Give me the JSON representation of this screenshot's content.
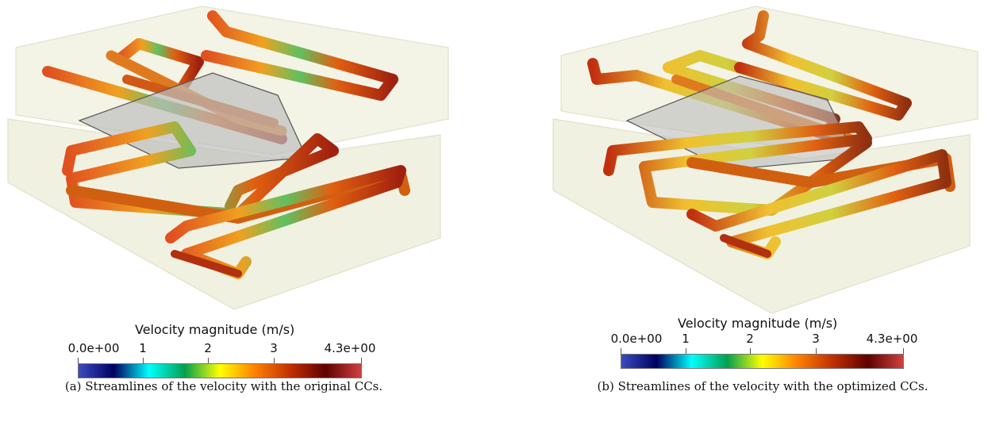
{
  "figure": {
    "panels": [
      {
        "id": "a",
        "caption": "(a) Streamlines of the velocity with the original CCs.",
        "colorbar": {
          "title": "Velocity magnitude (m/s)",
          "min_label": "0.0e+00",
          "max_label": "4.3e+00",
          "ticks": [
            "1",
            "2",
            "3"
          ],
          "tick_values": [
            1,
            2,
            3
          ],
          "range": [
            0,
            4.3
          ]
        }
      },
      {
        "id": "b",
        "caption": "(b) Streamlines of the velocity with the optimized CCs.",
        "colorbar": {
          "title": "Velocity magnitude (m/s)",
          "min_label": "0.0e+00",
          "max_label": "4.3e+00",
          "ticks": [
            "1",
            "2",
            "3"
          ],
          "tick_values": [
            1,
            2,
            3
          ],
          "range": [
            0,
            4.3
          ]
        }
      }
    ],
    "colormap": [
      "#3b4cc0",
      "#000060",
      "#00ffff",
      "#00a050",
      "#ffff00",
      "#ff8000",
      "#c03000",
      "#600000",
      "#d04040"
    ]
  }
}
